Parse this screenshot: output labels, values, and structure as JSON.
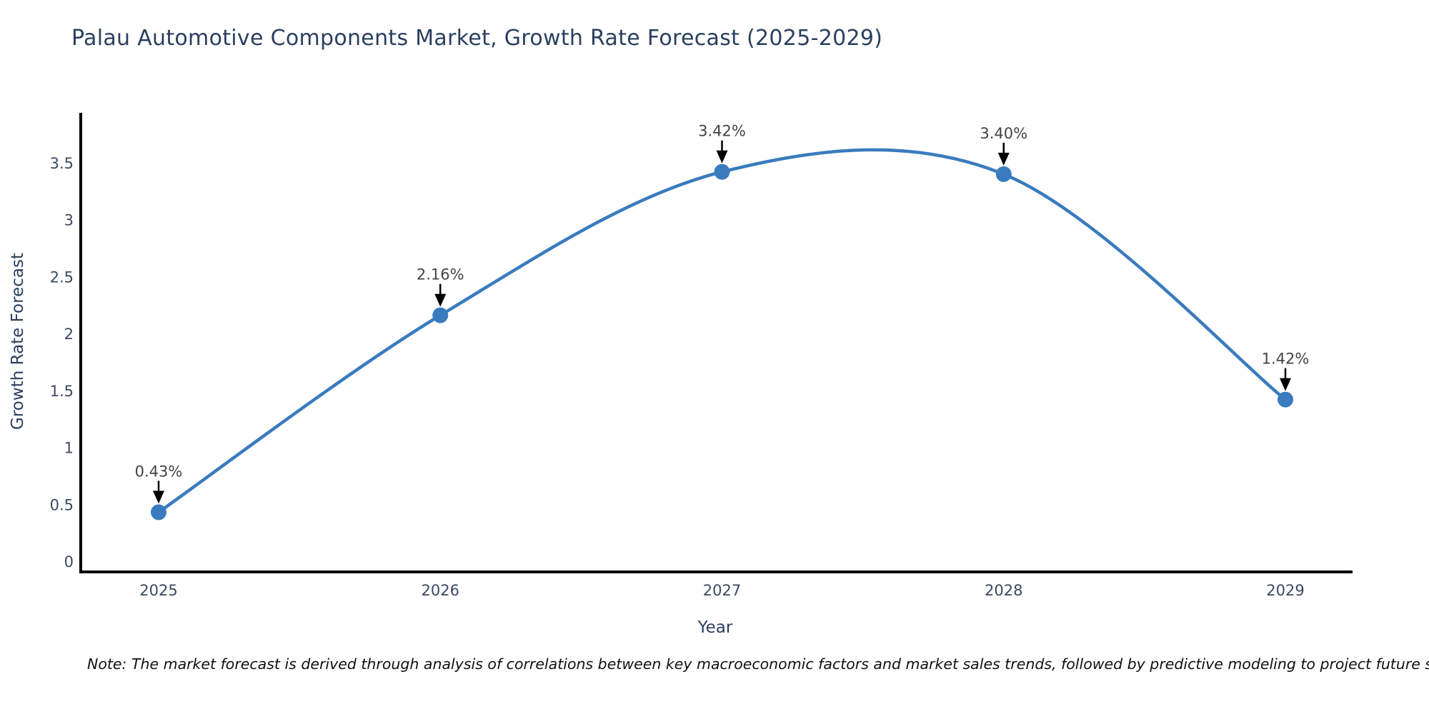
{
  "chart_data": {
    "type": "line",
    "title": "Palau Automotive Components Market, Growth Rate Forecast (2025-2029)",
    "xlabel": "Year",
    "ylabel": "Growth Rate Forecast",
    "categories": [
      "2025",
      "2026",
      "2027",
      "2028",
      "2029"
    ],
    "values": [
      0.43,
      2.16,
      3.42,
      3.4,
      1.42
    ],
    "point_labels": [
      "0.43%",
      "2.16%",
      "3.42%",
      "3.40%",
      "1.42%"
    ],
    "ytick_labels": [
      "0",
      "0.5",
      "1",
      "1.5",
      "2",
      "2.5",
      "3",
      "3.5"
    ],
    "ytick_values": [
      0,
      0.5,
      1,
      1.5,
      2,
      2.5,
      3,
      3.5
    ],
    "ylim": [
      0,
      3.5
    ],
    "line_shape": "spline",
    "grid": false,
    "legend_position": "none",
    "line_color": "#3a7bbe",
    "marker_color": "#3a7bbe",
    "annotation_arrow_color": "#000000",
    "annotation_text_color": "#444444",
    "axis_line_color": "#000000",
    "title_color": "#2a3f5f"
  },
  "note": "Note: The market forecast is derived through analysis of correlations between key macroeconomic factors and market sales trends, followed by predictive modeling to project future sales"
}
